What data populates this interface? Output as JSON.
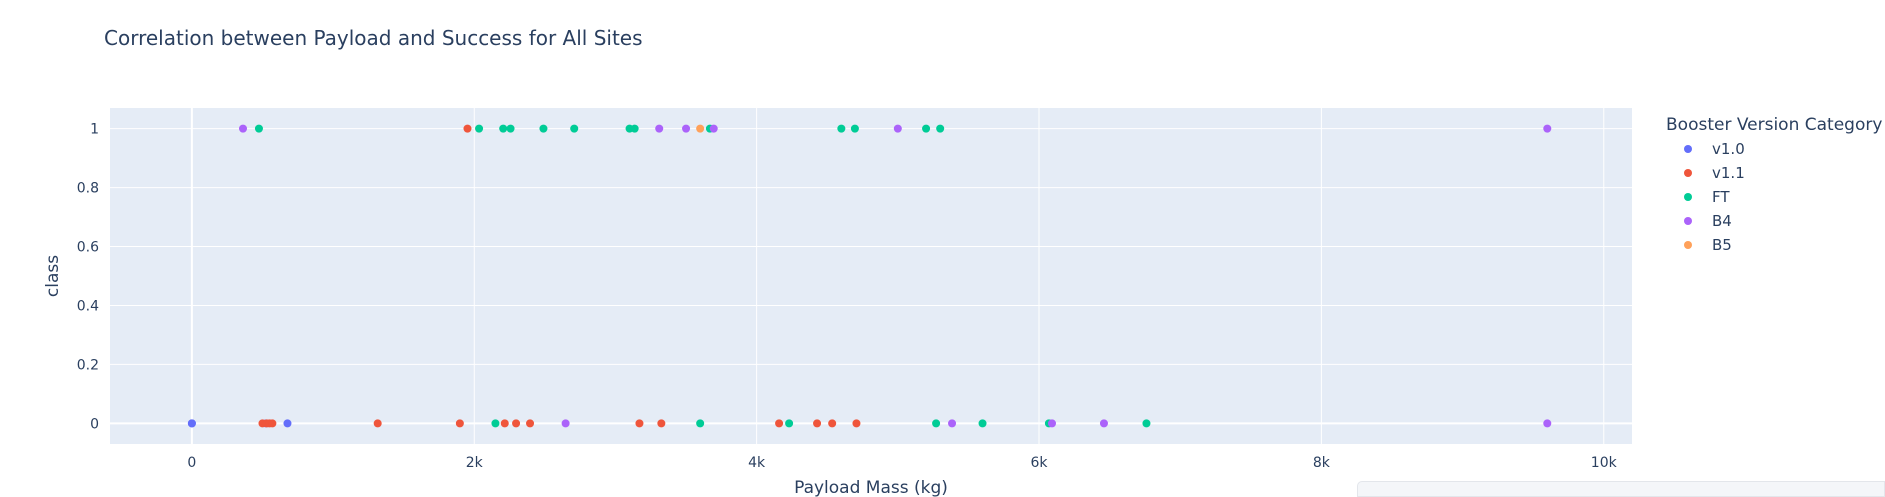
{
  "chart_data": {
    "type": "scatter",
    "title": "Correlation between Payload and Success for All Sites",
    "xlabel": "Payload Mass (kg)",
    "ylabel": "class",
    "xlim": [
      -580,
      10200
    ],
    "ylim": [
      -0.07,
      1.07
    ],
    "x_ticks": [
      0,
      2000,
      4000,
      6000,
      8000,
      10000
    ],
    "x_tick_labels": [
      "0",
      "2k",
      "4k",
      "6k",
      "8k",
      "10k"
    ],
    "y_ticks": [
      0,
      0.2,
      0.4,
      0.6,
      0.8,
      1
    ],
    "y_tick_labels": [
      "0",
      "0.2",
      "0.4",
      "0.6",
      "0.8",
      "1"
    ],
    "grid": true,
    "legend_title": "Booster Version Category",
    "legend_position": "right",
    "series": [
      {
        "name": "v1.0",
        "color": "#636efa",
        "points": [
          [
            0,
            0
          ],
          [
            0,
            0
          ],
          [
            525,
            0
          ],
          [
            677,
            0
          ]
        ]
      },
      {
        "name": "v1.1",
        "color": "#ef553b",
        "points": [
          [
            500,
            0
          ],
          [
            530,
            0
          ],
          [
            550,
            0
          ],
          [
            570,
            0
          ],
          [
            1316,
            0
          ],
          [
            1898,
            0
          ],
          [
            2216,
            0
          ],
          [
            2296,
            0
          ],
          [
            2395,
            0
          ],
          [
            3170,
            0
          ],
          [
            3325,
            0
          ],
          [
            4159,
            0
          ],
          [
            4428,
            0
          ],
          [
            4535,
            0
          ],
          [
            4707,
            0
          ],
          [
            1952,
            1
          ]
        ]
      },
      {
        "name": "FT",
        "color": "#00cc96",
        "points": [
          [
            475,
            1
          ],
          [
            2034,
            1
          ],
          [
            2205,
            1
          ],
          [
            2257,
            1
          ],
          [
            2490,
            1
          ],
          [
            2708,
            1
          ],
          [
            3100,
            1
          ],
          [
            3136,
            1
          ],
          [
            3669,
            1
          ],
          [
            4600,
            1
          ],
          [
            4696,
            1
          ],
          [
            5200,
            1
          ],
          [
            5300,
            1
          ],
          [
            2150,
            0
          ],
          [
            3600,
            0
          ],
          [
            4230,
            0
          ],
          [
            5271,
            0
          ],
          [
            5600,
            0
          ],
          [
            6070,
            0
          ],
          [
            6761,
            0
          ]
        ]
      },
      {
        "name": "B4",
        "color": "#ab63fa",
        "points": [
          [
            362,
            1
          ],
          [
            3310,
            1
          ],
          [
            3500,
            1
          ],
          [
            3696,
            1
          ],
          [
            5000,
            1
          ],
          [
            9600,
            1
          ],
          [
            2647,
            0
          ],
          [
            5384,
            0
          ],
          [
            6092,
            0
          ],
          [
            6460,
            0
          ],
          [
            9600,
            0
          ]
        ]
      },
      {
        "name": "B5",
        "color": "#ffa15a",
        "points": [
          [
            3600,
            1
          ]
        ]
      }
    ]
  }
}
